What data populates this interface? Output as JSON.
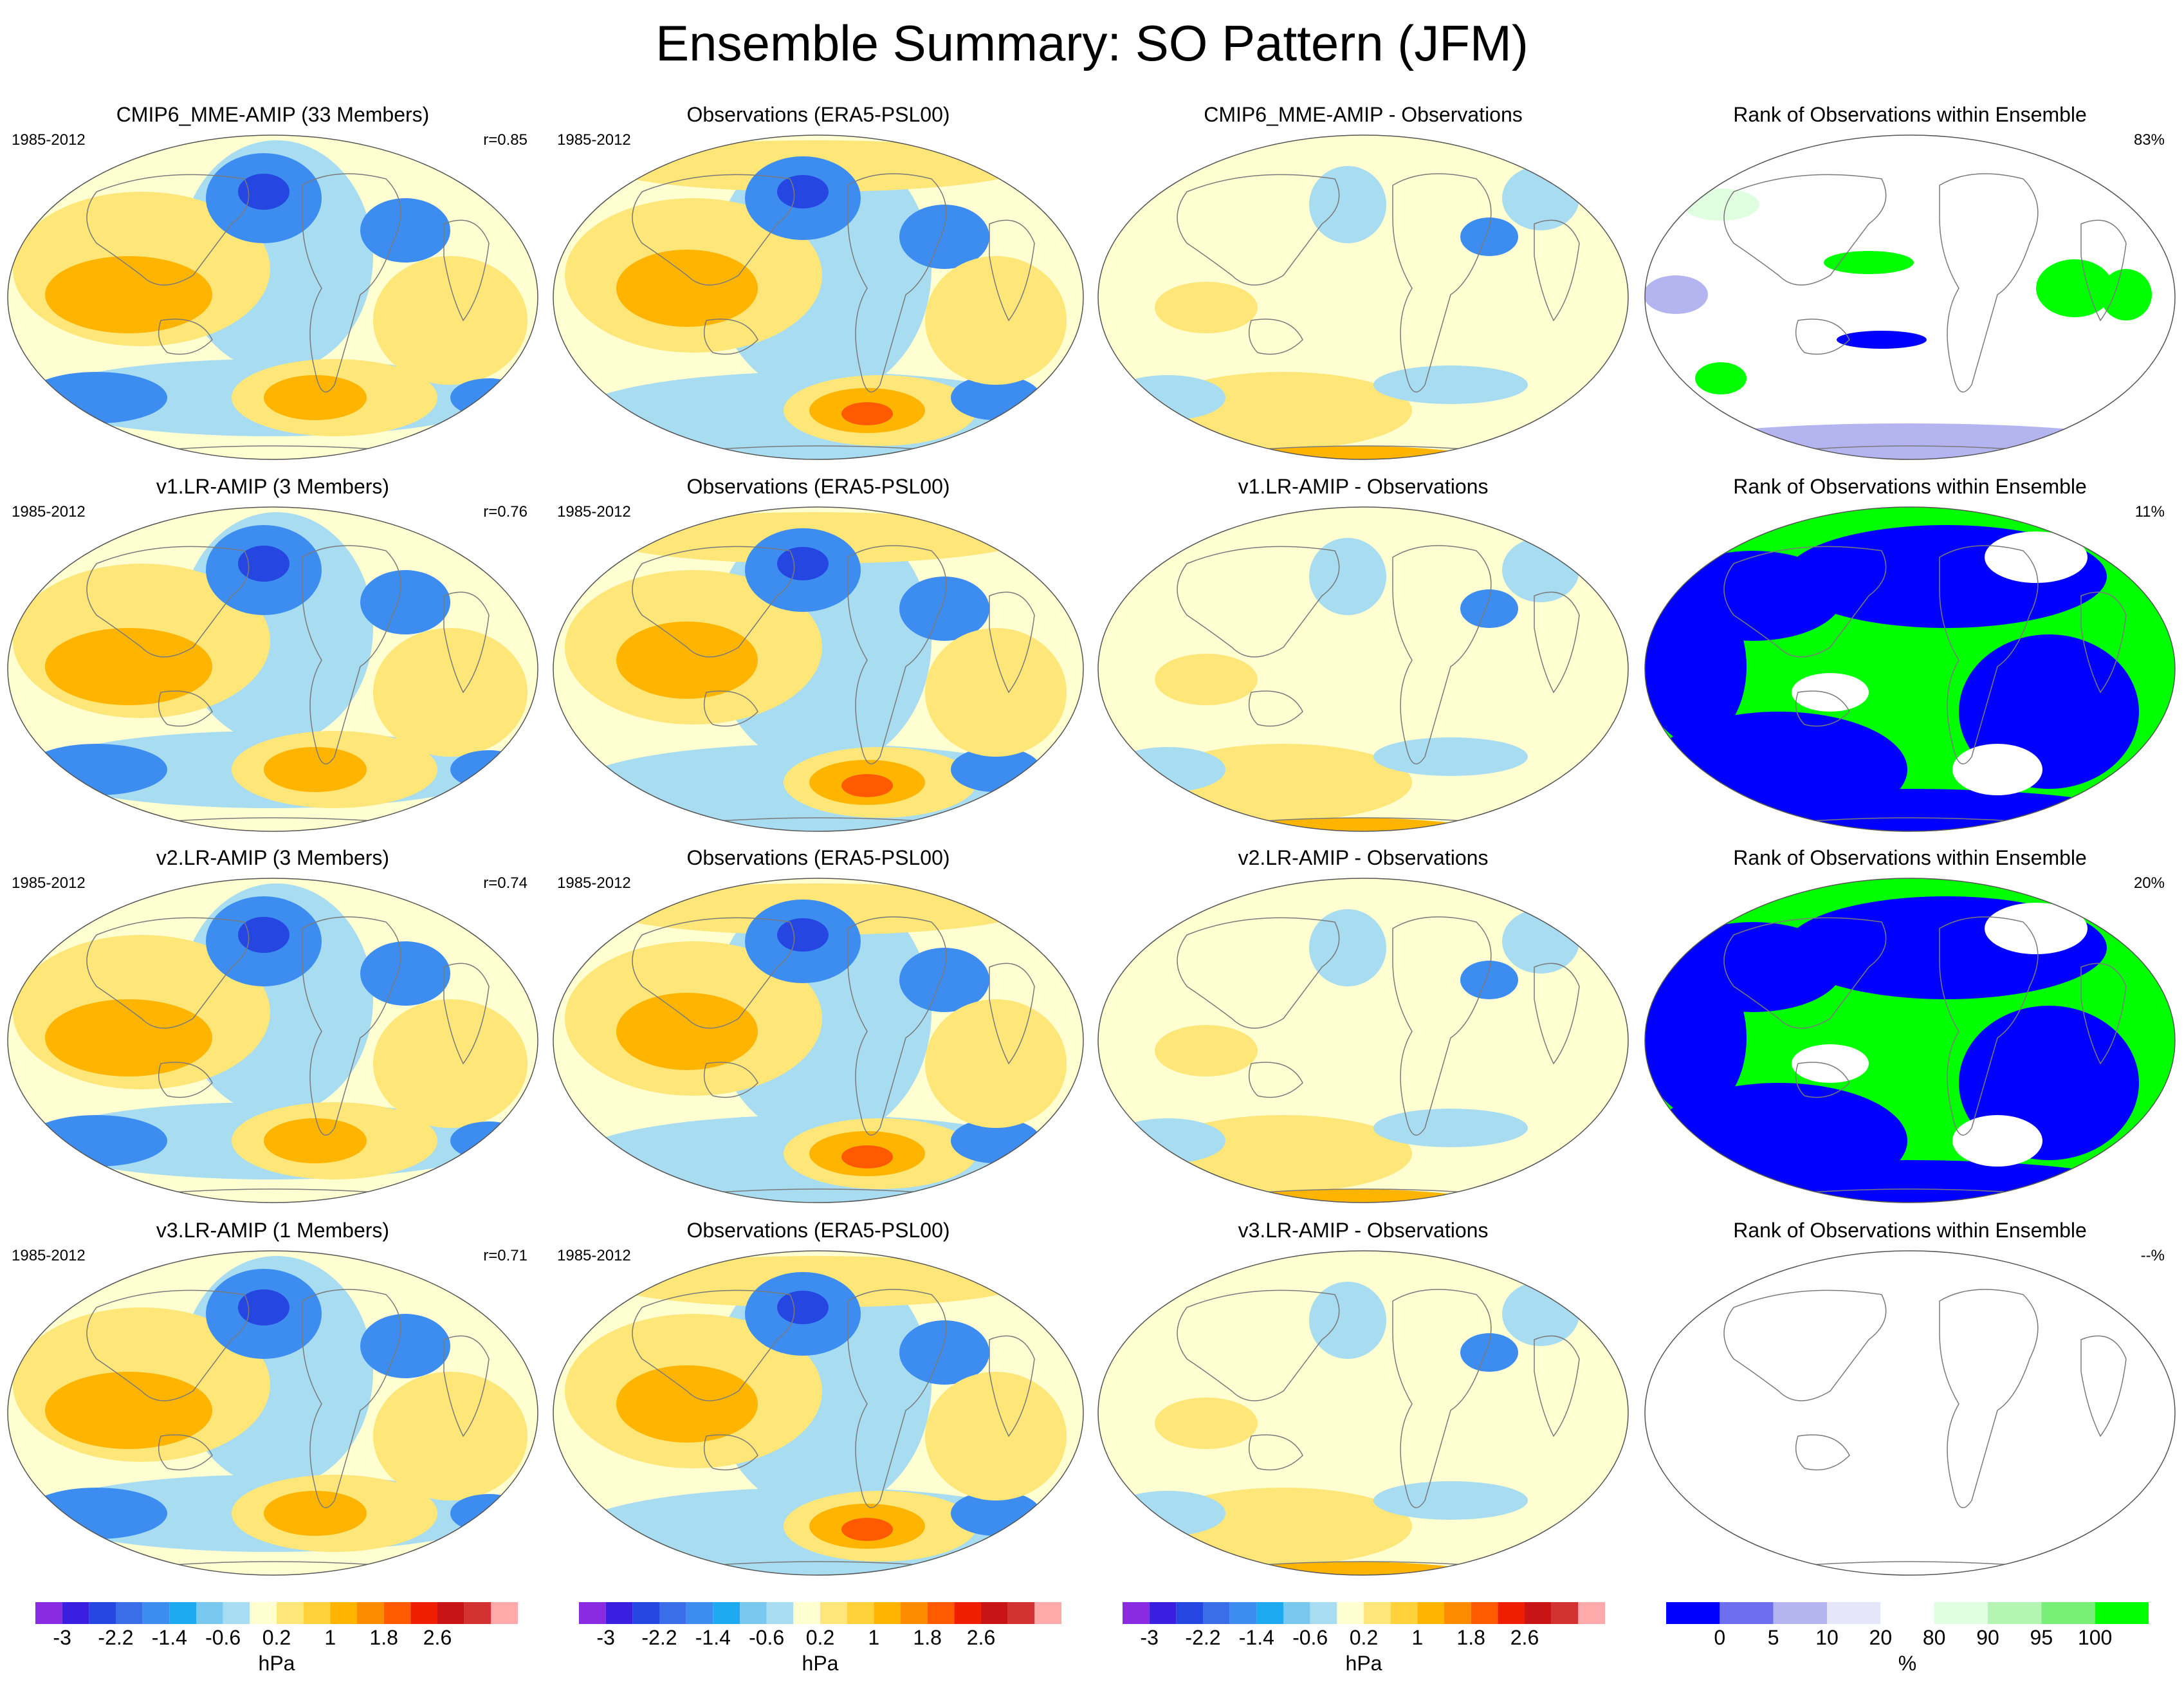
{
  "title": "Ensemble Summary: SO Pattern (JFM)",
  "rows": [
    {
      "model": "CMIP6_MME-AMIP (33 Members)",
      "period": "1985-2012",
      "r": "r=0.85",
      "obs_title": "Observations (ERA5-PSL00)",
      "obs_period": "1985-2012",
      "diff_title": "CMIP6_MME-AMIP - Observations",
      "rank_title": "Rank of Observations within Ensemble",
      "rank_pct": "83%"
    },
    {
      "model": "v1.LR-AMIP (3 Members)",
      "period": "1985-2012",
      "r": "r=0.76",
      "obs_title": "Observations (ERA5-PSL00)",
      "obs_period": "1985-2012",
      "diff_title": "v1.LR-AMIP - Observations",
      "rank_title": "Rank of Observations within Ensemble",
      "rank_pct": "11%"
    },
    {
      "model": "v2.LR-AMIP (3 Members)",
      "period": "1985-2012",
      "r": "r=0.74",
      "obs_title": "Observations (ERA5-PSL00)",
      "obs_period": "1985-2012",
      "diff_title": "v2.LR-AMIP - Observations",
      "rank_title": "Rank of Observations within Ensemble",
      "rank_pct": "20%"
    },
    {
      "model": "v3.LR-AMIP (1 Members)",
      "period": "1985-2012",
      "r": "r=0.71",
      "obs_title": "Observations (ERA5-PSL00)",
      "obs_period": "1985-2012",
      "diff_title": "v3.LR-AMIP - Observations",
      "rank_title": "Rank of Observations within Ensemble",
      "rank_pct": "--%"
    }
  ],
  "colorbar_hpa": {
    "colors": [
      "#8a2be2",
      "#3a1fe0",
      "#2546e0",
      "#3a6ee8",
      "#3d8cf0",
      "#1eaaf0",
      "#78c8f0",
      "#a8dcf0",
      "#ffffd2",
      "#ffe678",
      "#ffd23c",
      "#ffb400",
      "#ff8c00",
      "#ff5a00",
      "#f01e00",
      "#c81414",
      "#d23232",
      "#ffaaaa"
    ],
    "ticks": [
      "-3",
      "-2.2",
      "-1.4",
      "-0.6",
      "0.2",
      "1",
      "1.8",
      "2.6"
    ],
    "unit": "hPa"
  },
  "colorbar_pct": {
    "colors": [
      "#0000ff",
      "#6e6ef0",
      "#b4b4f0",
      "#e6e6fa",
      "#ffffff",
      "#e0ffe0",
      "#b4f5b4",
      "#78f078",
      "#00ff00"
    ],
    "ticks": [
      "0",
      "5",
      "10",
      "20",
      "80",
      "90",
      "95",
      "100"
    ],
    "unit": "%"
  },
  "map_colors": {
    "neg_strong": "#2546e0",
    "neg_mid": "#3d8cf0",
    "neg_light": "#a8dcf0",
    "neutral": "#ffffd2",
    "pos_light": "#ffe678",
    "pos_mid": "#ffb400",
    "pos_strong": "#ff5a00",
    "rank_low": "#0000ff",
    "rank_high": "#00ff00"
  }
}
